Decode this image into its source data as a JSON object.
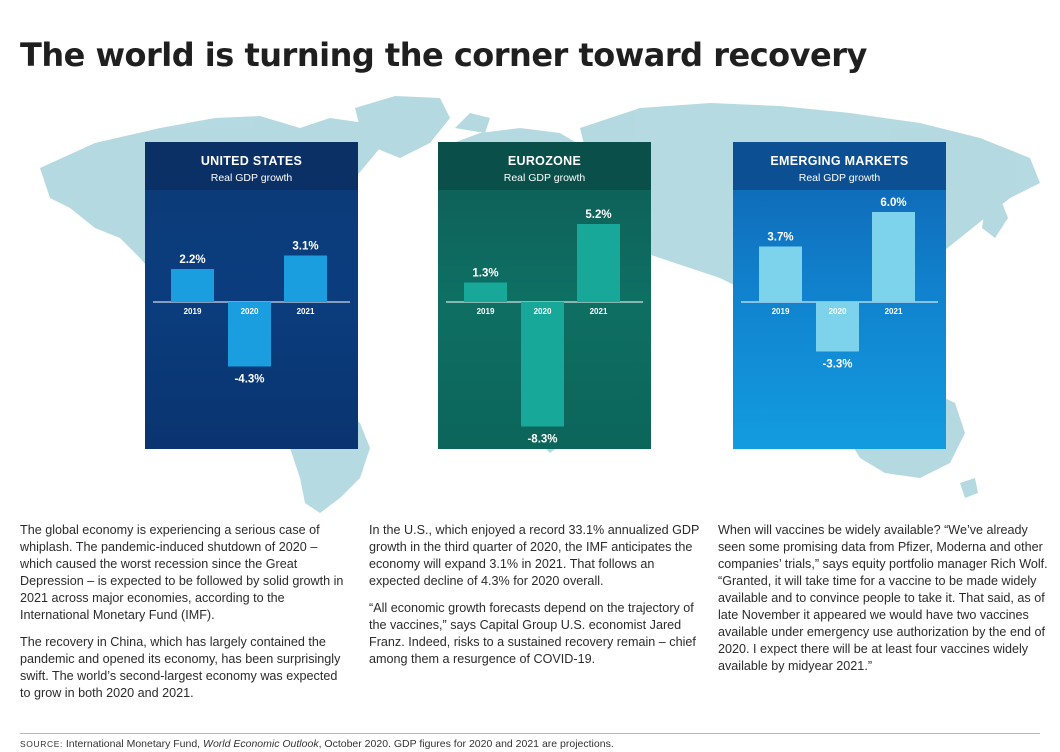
{
  "title": "The world is turning the corner toward recovery",
  "chart_data": [
    {
      "type": "bar",
      "title": "UNITED STATES",
      "subtitle": "Real GDP growth",
      "categories": [
        "2019",
        "2020",
        "2021"
      ],
      "values": [
        2.2,
        -4.3,
        3.1
      ],
      "value_labels": [
        "2.2%",
        "-4.3%",
        "3.1%"
      ],
      "colors": [
        "#1a9ee0",
        "#1a9ee0",
        "#1a9ee0"
      ],
      "ylim": [
        -8.3,
        6.0
      ]
    },
    {
      "type": "bar",
      "title": "EUROZONE",
      "subtitle": "Real GDP growth",
      "categories": [
        "2019",
        "2020",
        "2021"
      ],
      "values": [
        1.3,
        -8.3,
        5.2
      ],
      "value_labels": [
        "1.3%",
        "-8.3%",
        "5.2%"
      ],
      "colors": [
        "#17a89a",
        "#17a89a",
        "#17a89a"
      ],
      "ylim": [
        -8.3,
        6.0
      ]
    },
    {
      "type": "bar",
      "title": "EMERGING MARKETS",
      "subtitle": "Real GDP growth",
      "categories": [
        "2019",
        "2020",
        "2021"
      ],
      "values": [
        3.7,
        -3.3,
        6.0
      ],
      "value_labels": [
        "3.7%",
        "-3.3%",
        "6.0%"
      ],
      "colors": [
        "#7dd3ec",
        "#7dd3ec",
        "#7dd3ec"
      ],
      "ylim": [
        -8.3,
        6.0
      ]
    }
  ],
  "body": {
    "col1": [
      "The global economy is experiencing a serious case of whiplash. The pandemic-induced shutdown of 2020 – which caused the worst recession since the Great Depression – is expected to be followed by solid growth in 2021 across major economies, according to the International Monetary Fund (IMF).",
      "The recovery in China, which has largely contained the pandemic and opened its economy, has been surprisingly swift. The world’s second-largest economy was expected to grow in both 2020 and 2021."
    ],
    "col2": [
      "In the U.S., which enjoyed a record 33.1% annualized GDP growth in the third quarter of 2020, the IMF anticipates the economy will expand 3.1% in 2021. That follows an expected decline of 4.3% for 2020 overall.",
      "“All economic growth forecasts depend on the trajectory of the vaccines,” says Capital Group U.S. economist Jared Franz. Indeed, risks to a sustained recovery remain – chief among them a resurgence of COVID-19."
    ],
    "col3": [
      "When will vaccines be widely available? “We’ve already seen some promising data from Pfizer, Moderna and other companies’ trials,” says equity portfolio manager Rich Wolf. “Granted, it will take time for a vaccine to be made widely available and to convince people to take it. That said, as of late November it appeared we would have two vaccines available under emergency use authorization by the end of 2020. I expect there will be at least four vaccines widely available by midyear 2021.”"
    ]
  },
  "source": {
    "label": "SOURCE:",
    "text_before": "International Monetary Fund,",
    "publication": "World Economic Outlook",
    "text_after": ", October 2020. GDP figures for 2020 and 2021 are projections."
  },
  "colors": {
    "map": "#a9d3dc",
    "us_panel": "#0b3d7e",
    "ez_panel": "#0e6f63",
    "em_panel": "#1180cc"
  }
}
